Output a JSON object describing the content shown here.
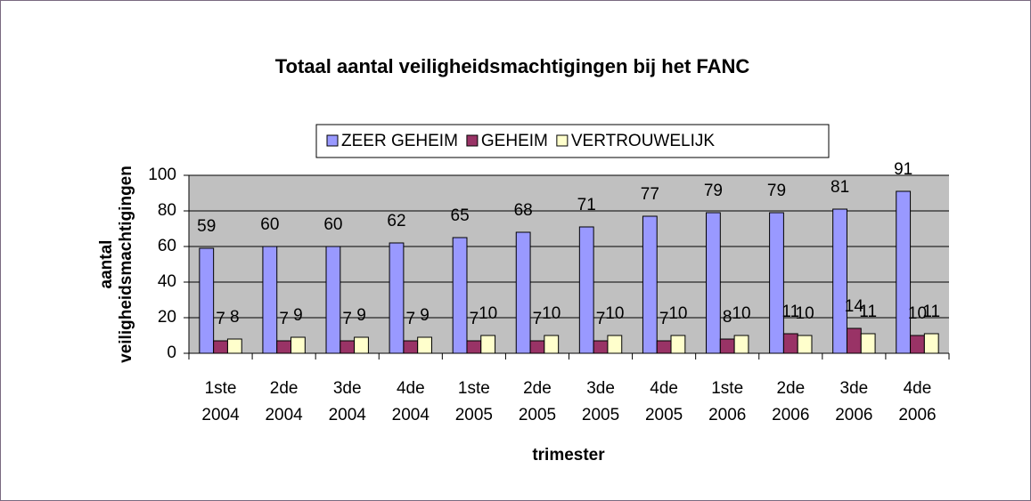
{
  "chart_data": {
    "type": "bar",
    "title": "Totaal aantal veiligheidsmachtigingen bij het FANC",
    "x_label": "trimester",
    "y_label": [
      "aantal",
      "veiligheidsmachtigingen"
    ],
    "categories": [
      [
        "1ste",
        "2004"
      ],
      [
        "2de",
        "2004"
      ],
      [
        "3de",
        "2004"
      ],
      [
        "4de",
        "2004"
      ],
      [
        "1ste",
        "2005"
      ],
      [
        "2de",
        "2005"
      ],
      [
        "3de",
        "2005"
      ],
      [
        "4de",
        "2005"
      ],
      [
        "1ste",
        "2006"
      ],
      [
        "2de",
        "2006"
      ],
      [
        "3de",
        "2006"
      ],
      [
        "4de",
        "2006"
      ]
    ],
    "series": [
      {
        "name": "ZEER GEHEIM",
        "color": "#9999ff",
        "values": [
          59,
          60,
          60,
          62,
          65,
          68,
          71,
          77,
          79,
          79,
          81,
          91
        ]
      },
      {
        "name": "GEHEIM",
        "color": "#993366",
        "values": [
          7,
          7,
          7,
          7,
          7,
          7,
          7,
          7,
          8,
          11,
          14,
          10
        ]
      },
      {
        "name": "VERTROUWELIJK",
        "color": "#ffffcc",
        "values": [
          8,
          9,
          9,
          9,
          10,
          10,
          10,
          10,
          10,
          10,
          11,
          11
        ]
      }
    ],
    "ylim": [
      0,
      100
    ],
    "yticks": [
      0,
      20,
      40,
      60,
      80,
      100
    ],
    "grid": true,
    "legend": "top"
  }
}
